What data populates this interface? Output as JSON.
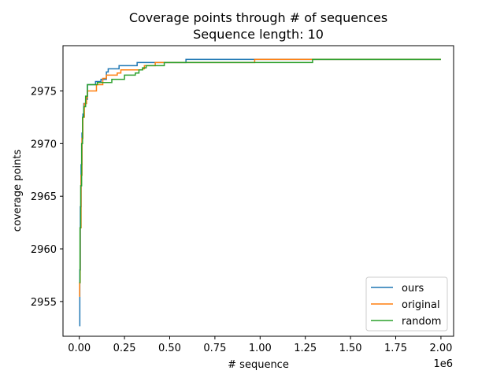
{
  "chart_data": {
    "type": "line",
    "title": "Coverage points through # of sequences",
    "subtitle": "Sequence length: 10",
    "xlabel": "# sequence",
    "ylabel": "coverage points",
    "x_offset_label": "1e6",
    "xlim": [
      -0.09,
      2.07
    ],
    "ylim": [
      2951.7,
      2979.3
    ],
    "x_ticks": [
      0.0,
      0.25,
      0.5,
      0.75,
      1.0,
      1.25,
      1.5,
      1.75,
      2.0
    ],
    "x_tick_labels": [
      "0.00",
      "0.25",
      "0.50",
      "0.75",
      "1.00",
      "1.25",
      "1.50",
      "1.75",
      "2.00"
    ],
    "y_ticks": [
      2955,
      2960,
      2965,
      2970,
      2975
    ],
    "y_tick_labels": [
      "2955",
      "2960",
      "2965",
      "2970",
      "2975"
    ],
    "grid": false,
    "legend_position": "lower-right",
    "series": [
      {
        "name": "ours",
        "color": "#1f77b4",
        "step": true,
        "points": [
          [
            0.0,
            2952.7
          ],
          [
            0.003,
            2958
          ],
          [
            0.006,
            2964
          ],
          [
            0.01,
            2968
          ],
          [
            0.015,
            2971
          ],
          [
            0.02,
            2972.8
          ],
          [
            0.025,
            2973.8
          ],
          [
            0.035,
            2974.2
          ],
          [
            0.045,
            2975.6
          ],
          [
            0.08,
            2975.6
          ],
          [
            0.09,
            2975.9
          ],
          [
            0.12,
            2976.1
          ],
          [
            0.15,
            2976.8
          ],
          [
            0.16,
            2977.1
          ],
          [
            0.22,
            2977.4
          ],
          [
            0.32,
            2977.7
          ],
          [
            0.59,
            2978.0
          ],
          [
            2.0,
            2978.0
          ]
        ]
      },
      {
        "name": "original",
        "color": "#ff7f0e",
        "step": true,
        "points": [
          [
            0.0,
            2955.5
          ],
          [
            0.002,
            2956.8
          ],
          [
            0.005,
            2962
          ],
          [
            0.01,
            2967
          ],
          [
            0.015,
            2970.5
          ],
          [
            0.02,
            2972.5
          ],
          [
            0.028,
            2973.8
          ],
          [
            0.04,
            2974.4
          ],
          [
            0.045,
            2975.0
          ],
          [
            0.095,
            2975.6
          ],
          [
            0.13,
            2976.2
          ],
          [
            0.15,
            2976.5
          ],
          [
            0.21,
            2976.7
          ],
          [
            0.23,
            2977.0
          ],
          [
            0.35,
            2977.1
          ],
          [
            0.36,
            2977.4
          ],
          [
            0.42,
            2977.7
          ],
          [
            0.97,
            2978.0
          ],
          [
            2.0,
            2978.0
          ]
        ]
      },
      {
        "name": "random",
        "color": "#2ca02c",
        "step": true,
        "points": [
          [
            0.0,
            2956.8
          ],
          [
            0.004,
            2962
          ],
          [
            0.008,
            2966
          ],
          [
            0.013,
            2970
          ],
          [
            0.018,
            2972.5
          ],
          [
            0.025,
            2973.5
          ],
          [
            0.035,
            2974.5
          ],
          [
            0.045,
            2975.6
          ],
          [
            0.09,
            2975.6
          ],
          [
            0.1,
            2975.8
          ],
          [
            0.18,
            2976.1
          ],
          [
            0.25,
            2976.5
          ],
          [
            0.31,
            2976.7
          ],
          [
            0.33,
            2977.0
          ],
          [
            0.35,
            2977.2
          ],
          [
            0.37,
            2977.4
          ],
          [
            0.47,
            2977.7
          ],
          [
            1.29,
            2978.0
          ],
          [
            2.0,
            2978.0
          ]
        ]
      }
    ]
  }
}
